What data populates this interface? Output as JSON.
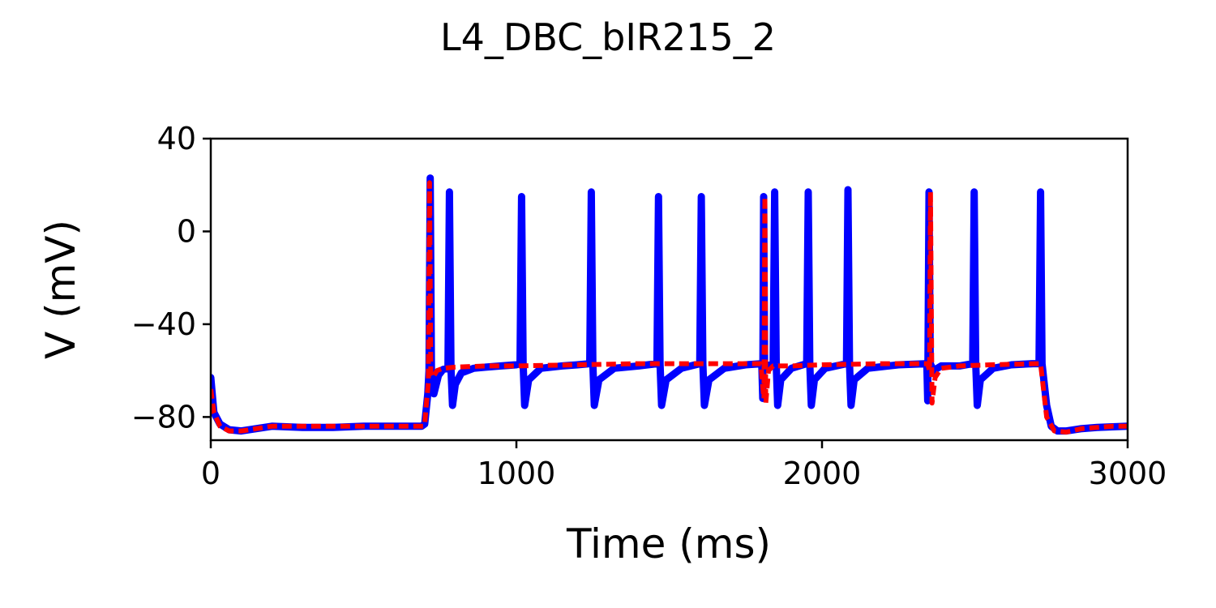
{
  "chart_data": {
    "type": "line",
    "title": "L4_DBC_bIR215_2",
    "xlabel": "Time (ms)",
    "ylabel": "V (mV)",
    "xlim": [
      0,
      3000
    ],
    "ylim": [
      -90,
      40
    ],
    "xticks": [
      0,
      1000,
      2000,
      3000
    ],
    "xtick_labels": [
      "0",
      "1000",
      "2000",
      "3000"
    ],
    "yticks": [
      40,
      0,
      -40,
      -80
    ],
    "ytick_labels": [
      "40",
      "0",
      "−40",
      "−80"
    ],
    "grid": false,
    "legend": "none",
    "series": [
      {
        "color": "#0000ff",
        "style": "solid",
        "points": [
          [
            0,
            -63
          ],
          [
            10,
            -78
          ],
          [
            30,
            -83
          ],
          [
            60,
            -85.5
          ],
          [
            100,
            -86
          ],
          [
            150,
            -85
          ],
          [
            200,
            -84
          ],
          [
            300,
            -84.5
          ],
          [
            400,
            -84.5
          ],
          [
            500,
            -84
          ],
          [
            600,
            -84
          ],
          [
            690,
            -84
          ],
          [
            700,
            -83
          ],
          [
            710,
            -70
          ],
          [
            714,
            -60
          ],
          [
            718,
            23
          ],
          [
            722,
            -60
          ],
          [
            730,
            -70
          ],
          [
            745,
            -62
          ],
          [
            760,
            -59.5
          ],
          [
            776,
            -59
          ],
          [
            781,
            17
          ],
          [
            786,
            -59
          ],
          [
            791,
            -75
          ],
          [
            800,
            -66
          ],
          [
            820,
            -61
          ],
          [
            860,
            -59
          ],
          [
            900,
            -58.5
          ],
          [
            950,
            -58
          ],
          [
            1000,
            -57.5
          ],
          [
            1012,
            -57
          ],
          [
            1017,
            15
          ],
          [
            1022,
            -57
          ],
          [
            1027,
            -75
          ],
          [
            1040,
            -64
          ],
          [
            1080,
            -59
          ],
          [
            1150,
            -58
          ],
          [
            1200,
            -57.5
          ],
          [
            1240,
            -57
          ],
          [
            1245,
            17
          ],
          [
            1250,
            -57
          ],
          [
            1255,
            -75
          ],
          [
            1270,
            -64
          ],
          [
            1320,
            -59
          ],
          [
            1400,
            -58
          ],
          [
            1460,
            -57
          ],
          [
            1465,
            15
          ],
          [
            1470,
            -57
          ],
          [
            1475,
            -75
          ],
          [
            1490,
            -64
          ],
          [
            1540,
            -59
          ],
          [
            1600,
            -57
          ],
          [
            1605,
            15
          ],
          [
            1610,
            -57
          ],
          [
            1615,
            -75
          ],
          [
            1630,
            -64
          ],
          [
            1680,
            -59
          ],
          [
            1750,
            -57.5
          ],
          [
            1803,
            -57
          ],
          [
            1806,
            -72
          ],
          [
            1809,
            15
          ],
          [
            1812,
            -57
          ],
          [
            1822,
            -58
          ],
          [
            1840,
            -57
          ],
          [
            1845,
            17
          ],
          [
            1850,
            -57
          ],
          [
            1855,
            -75
          ],
          [
            1865,
            -64
          ],
          [
            1900,
            -59
          ],
          [
            1950,
            -57
          ],
          [
            1955,
            17
          ],
          [
            1960,
            -57
          ],
          [
            1965,
            -75
          ],
          [
            1975,
            -64
          ],
          [
            2010,
            -59
          ],
          [
            2080,
            -57
          ],
          [
            2085,
            18
          ],
          [
            2090,
            -57
          ],
          [
            2095,
            -75
          ],
          [
            2105,
            -64
          ],
          [
            2150,
            -59
          ],
          [
            2250,
            -57.5
          ],
          [
            2343,
            -57
          ],
          [
            2346,
            -73
          ],
          [
            2350,
            17
          ],
          [
            2354,
            -57
          ],
          [
            2365,
            -60
          ],
          [
            2390,
            -58
          ],
          [
            2450,
            -58
          ],
          [
            2493,
            -57
          ],
          [
            2498,
            17
          ],
          [
            2503,
            -57
          ],
          [
            2508,
            -75
          ],
          [
            2518,
            -64
          ],
          [
            2560,
            -59
          ],
          [
            2620,
            -57.5
          ],
          [
            2690,
            -57
          ],
          [
            2710,
            -57
          ],
          [
            2715,
            17
          ],
          [
            2720,
            -57
          ],
          [
            2735,
            -75
          ],
          [
            2750,
            -84
          ],
          [
            2770,
            -86
          ],
          [
            2800,
            -86
          ],
          [
            2850,
            -85
          ],
          [
            2900,
            -84.5
          ],
          [
            3000,
            -84
          ]
        ]
      },
      {
        "color": "#ff0000",
        "style": "dashed",
        "points": [
          [
            0,
            -68
          ],
          [
            10,
            -78
          ],
          [
            30,
            -84
          ],
          [
            60,
            -86
          ],
          [
            100,
            -86
          ],
          [
            150,
            -85
          ],
          [
            200,
            -84
          ],
          [
            300,
            -84
          ],
          [
            400,
            -84
          ],
          [
            500,
            -84
          ],
          [
            600,
            -84
          ],
          [
            695,
            -84
          ],
          [
            700,
            -83
          ],
          [
            705,
            -75
          ],
          [
            712,
            -65
          ],
          [
            716,
            21
          ],
          [
            720,
            -62
          ],
          [
            727,
            -63
          ],
          [
            740,
            -60
          ],
          [
            760,
            -59
          ],
          [
            800,
            -58.5
          ],
          [
            900,
            -58
          ],
          [
            1000,
            -58
          ],
          [
            1200,
            -57.5
          ],
          [
            1400,
            -57
          ],
          [
            1600,
            -57
          ],
          [
            1780,
            -57
          ],
          [
            1800,
            -57
          ],
          [
            1807,
            -68
          ],
          [
            1810,
            -72
          ],
          [
            1813,
            15
          ],
          [
            1816,
            -74
          ],
          [
            1825,
            -60
          ],
          [
            1840,
            -58
          ],
          [
            1900,
            -58
          ],
          [
            2000,
            -57.5
          ],
          [
            2200,
            -57
          ],
          [
            2345,
            -57
          ],
          [
            2352,
            -60
          ],
          [
            2355,
            17
          ],
          [
            2360,
            -74
          ],
          [
            2370,
            -63
          ],
          [
            2390,
            -59
          ],
          [
            2450,
            -58
          ],
          [
            2550,
            -57.5
          ],
          [
            2700,
            -57
          ],
          [
            2715,
            -57
          ],
          [
            2735,
            -80
          ],
          [
            2760,
            -86
          ],
          [
            2800,
            -86.5
          ],
          [
            2850,
            -85
          ],
          [
            2950,
            -84
          ],
          [
            3000,
            -84
          ]
        ]
      }
    ]
  }
}
